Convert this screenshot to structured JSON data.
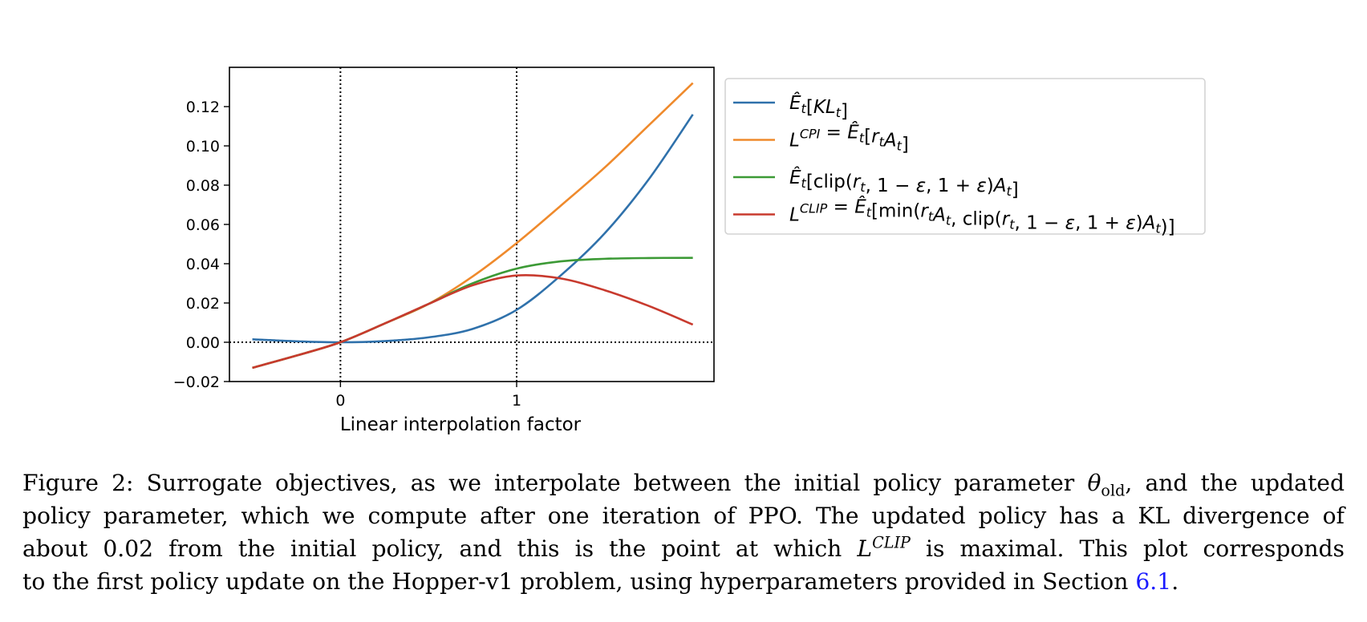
{
  "chart_data": {
    "type": "line",
    "xlabel": "Linear interpolation factor",
    "ylabel": "",
    "xlim": [
      -0.63,
      2.12
    ],
    "ylim": [
      -0.02,
      0.14
    ],
    "x_ticks": [
      0,
      1
    ],
    "y_ticks": [
      -0.02,
      0.0,
      0.02,
      0.04,
      0.06,
      0.08,
      0.1,
      0.12
    ],
    "y_tick_labels": [
      "−0.02",
      "0.00",
      "0.02",
      "0.04",
      "0.06",
      "0.08",
      "0.10",
      "0.12"
    ],
    "reference_lines": {
      "vertical": [
        0,
        1
      ],
      "horizontal": [
        0.0
      ],
      "style": "dotted"
    },
    "grid": false,
    "legend_position": "outside-right-top",
    "x": [
      -0.5,
      -0.25,
      0,
      0.25,
      0.5,
      0.75,
      1.0,
      1.25,
      1.5,
      1.75,
      2.0
    ],
    "series": [
      {
        "name_parts": [
          {
            "t": "Ê",
            "style": "italic"
          },
          {
            "t": "t",
            "style": "italic-sub"
          },
          {
            "t": "[",
            "style": "normal"
          },
          {
            "t": "KL",
            "style": "italic"
          },
          {
            "t": "t",
            "style": "italic-sub"
          },
          {
            "t": "]",
            "style": "normal"
          }
        ],
        "color": "#2f71ab",
        "values": [
          0.0015,
          0.0005,
          0.0,
          0.0006,
          0.0025,
          0.0068,
          0.0165,
          0.034,
          0.0555,
          0.083,
          0.116
        ]
      },
      {
        "name_parts": [
          {
            "t": "L",
            "style": "italic"
          },
          {
            "t": "CPI",
            "style": "italic-sup"
          },
          {
            "t": " = ",
            "style": "normal"
          },
          {
            "t": "Ê",
            "style": "italic"
          },
          {
            "t": "t",
            "style": "italic-sub"
          },
          {
            "t": "[",
            "style": "normal"
          },
          {
            "t": "r",
            "style": "italic"
          },
          {
            "t": "t",
            "style": "italic-sub"
          },
          {
            "t": "A",
            "style": "italic"
          },
          {
            "t": "t",
            "style": "italic-sub"
          },
          {
            "t": "]",
            "style": "normal"
          }
        ],
        "color": "#ef8a2c",
        "values": [
          -0.013,
          -0.0068,
          0.0,
          0.0095,
          0.0195,
          0.0335,
          0.0505,
          0.0695,
          0.089,
          0.1105,
          0.132
        ]
      },
      {
        "name_parts": [
          {
            "t": "Ê",
            "style": "italic"
          },
          {
            "t": "t",
            "style": "italic-sub"
          },
          {
            "t": "[clip(",
            "style": "normal"
          },
          {
            "t": "r",
            "style": "italic"
          },
          {
            "t": "t",
            "style": "italic-sub"
          },
          {
            "t": ", 1 − ",
            "style": "normal"
          },
          {
            "t": "ε",
            "style": "italic"
          },
          {
            "t": ", 1 + ",
            "style": "normal"
          },
          {
            "t": "ε",
            "style": "italic"
          },
          {
            "t": ")",
            "style": "normal"
          },
          {
            "t": "A",
            "style": "italic"
          },
          {
            "t": "t",
            "style": "italic-sub"
          },
          {
            "t": "]",
            "style": "normal"
          }
        ],
        "color": "#3c9a36",
        "values": [
          -0.013,
          -0.0068,
          0.0,
          0.0095,
          0.0195,
          0.03,
          0.0375,
          0.0412,
          0.0425,
          0.0429,
          0.043
        ]
      },
      {
        "name_parts": [
          {
            "t": "L",
            "style": "italic"
          },
          {
            "t": "CLIP",
            "style": "italic-sup"
          },
          {
            "t": " = ",
            "style": "normal"
          },
          {
            "t": "Ê",
            "style": "italic"
          },
          {
            "t": "t",
            "style": "italic-sub"
          },
          {
            "t": "[min(",
            "style": "normal"
          },
          {
            "t": "r",
            "style": "italic"
          },
          {
            "t": "t",
            "style": "italic-sub"
          },
          {
            "t": "A",
            "style": "italic"
          },
          {
            "t": "t",
            "style": "italic-sub"
          },
          {
            "t": ", clip(",
            "style": "normal"
          },
          {
            "t": "r",
            "style": "italic"
          },
          {
            "t": "t",
            "style": "italic-sub"
          },
          {
            "t": ", 1 − ",
            "style": "normal"
          },
          {
            "t": "ε",
            "style": "italic"
          },
          {
            "t": ", 1 + ",
            "style": "normal"
          },
          {
            "t": "ε",
            "style": "italic"
          },
          {
            "t": ")",
            "style": "normal"
          },
          {
            "t": "A",
            "style": "italic"
          },
          {
            "t": "t",
            "style": "italic-sub"
          },
          {
            "t": ")]",
            "style": "normal"
          }
        ],
        "color": "#c83a2e",
        "values": [
          -0.013,
          -0.0068,
          0.0,
          0.0095,
          0.0195,
          0.029,
          0.034,
          0.0325,
          0.0265,
          0.0185,
          0.009
        ]
      }
    ]
  },
  "caption": {
    "label": "Figure 2:",
    "text_1": " Surrogate objectives, as we interpolate between the initial policy parameter ",
    "theta": "θ",
    "theta_sub": "old",
    "text_2": ", and the updated",
    "line_2": "policy parameter, which we compute after one iteration of PPO. The updated policy has a KL divergence of",
    "text_3": "about 0.02 from the initial policy, and this is the point at which ",
    "L": "L",
    "L_sup": "CLIP",
    "text_4": " is maximal. This plot corresponds",
    "text_5": "to the first policy update on the Hopper-v1 problem, using hyperparameters provided in Section ",
    "section_ref": "6.1",
    "text_6": "."
  }
}
